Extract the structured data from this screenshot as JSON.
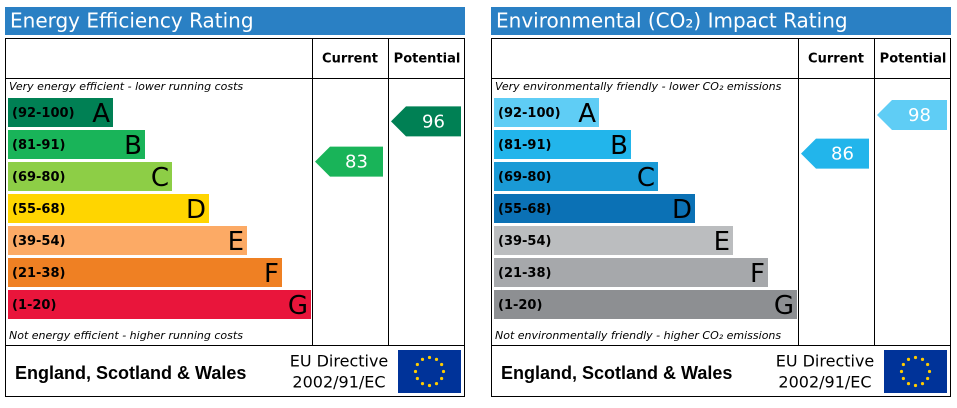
{
  "panels": [
    {
      "title": "Energy Efficiency Rating",
      "current_label": "Current",
      "potential_label": "Potential",
      "top_note": "Very energy efficient - lower running costs",
      "bottom_note": "Not energy efficient - higher running costs",
      "bands": [
        {
          "range": "(92-100)",
          "letter": "A",
          "color": "#008054"
        },
        {
          "range": "(81-91)",
          "letter": "B",
          "color": "#19b459"
        },
        {
          "range": "(69-80)",
          "letter": "C",
          "color": "#8dce46"
        },
        {
          "range": "(55-68)",
          "letter": "D",
          "color": "#ffd500"
        },
        {
          "range": "(39-54)",
          "letter": "E",
          "color": "#fcaa65"
        },
        {
          "range": "(21-38)",
          "letter": "F",
          "color": "#ef8023"
        },
        {
          "range": "(1-20)",
          "letter": "G",
          "color": "#e9153b"
        }
      ],
      "current": 83,
      "potential": 96,
      "footer": {
        "region": "England, Scotland & Wales",
        "directive": "EU Directive",
        "code": "2002/91/EC"
      }
    },
    {
      "title": "Environmental (CO₂) Impact Rating",
      "current_label": "Current",
      "potential_label": "Potential",
      "top_note": "Very environmentally friendly - lower CO₂ emissions",
      "bottom_note": "Not environmentally friendly - higher CO₂ emissions",
      "bands": [
        {
          "range": "(92-100)",
          "letter": "A",
          "color": "#5fcdf5"
        },
        {
          "range": "(81-91)",
          "letter": "B",
          "color": "#22b5eb"
        },
        {
          "range": "(69-80)",
          "letter": "C",
          "color": "#1a9ad6"
        },
        {
          "range": "(55-68)",
          "letter": "D",
          "color": "#0b71b5"
        },
        {
          "range": "(39-54)",
          "letter": "E",
          "color": "#bbbdbf"
        },
        {
          "range": "(21-38)",
          "letter": "F",
          "color": "#a6a8ab"
        },
        {
          "range": "(1-20)",
          "letter": "G",
          "color": "#8d8f92"
        }
      ],
      "current": 86,
      "potential": 98,
      "footer": {
        "region": "England, Scotland & Wales",
        "directive": "EU Directive",
        "code": "2002/91/EC"
      }
    }
  ]
}
